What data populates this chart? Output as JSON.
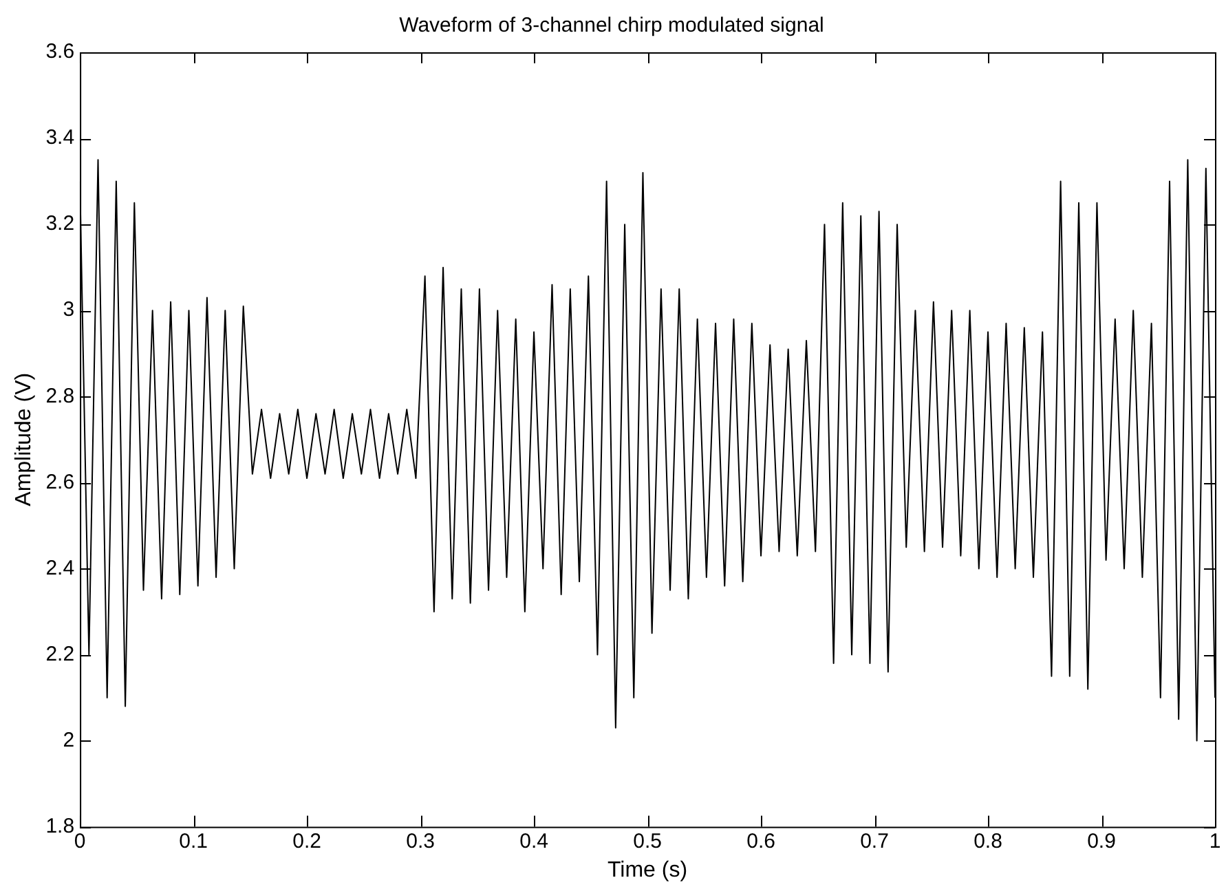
{
  "chart_data": {
    "type": "line",
    "title": "Waveform of 3-channel chirp modulated signal",
    "xlabel": "Time (s)",
    "ylabel": "Amplitude (V)",
    "xlim": [
      0,
      1
    ],
    "xticks": [
      0,
      0.1,
      0.2,
      0.3,
      0.4,
      0.5,
      0.6,
      0.7,
      0.8,
      0.9,
      1
    ],
    "ylim": [
      1.8,
      3.6
    ],
    "yticks": [
      1.8,
      2,
      2.2,
      2.4,
      2.6,
      2.8,
      3,
      3.2,
      3.4,
      3.6
    ],
    "grid": false,
    "legend": false,
    "marker": "none",
    "line_style": "solid",
    "series": [
      {
        "color": "#000000",
        "x": [
          0,
          0.008,
          0.016,
          0.024,
          0.032,
          0.04,
          0.048,
          0.056,
          0.064,
          0.072,
          0.08,
          0.088,
          0.096,
          0.104,
          0.112,
          0.12,
          0.128,
          0.136,
          0.144,
          0.152,
          0.16,
          0.168,
          0.176,
          0.184,
          0.192,
          0.2,
          0.208,
          0.216,
          0.224,
          0.232,
          0.24,
          0.248,
          0.256,
          0.264,
          0.272,
          0.28,
          0.288,
          0.296,
          0.304,
          0.312,
          0.32,
          0.328,
          0.336,
          0.344,
          0.352,
          0.36,
          0.368,
          0.376,
          0.384,
          0.392,
          0.4,
          0.408,
          0.416,
          0.424,
          0.432,
          0.44,
          0.448,
          0.456,
          0.464,
          0.472,
          0.48,
          0.488,
          0.496,
          0.504,
          0.512,
          0.52,
          0.528,
          0.536,
          0.544,
          0.552,
          0.56,
          0.568,
          0.576,
          0.584,
          0.592,
          0.6,
          0.608,
          0.616,
          0.624,
          0.632,
          0.64,
          0.648,
          0.656,
          0.664,
          0.672,
          0.68,
          0.688,
          0.696,
          0.704,
          0.712,
          0.72,
          0.728,
          0.736,
          0.744,
          0.752,
          0.76,
          0.768,
          0.776,
          0.784,
          0.792,
          0.8,
          0.808,
          0.816,
          0.824,
          0.832,
          0.84,
          0.848,
          0.856,
          0.864,
          0.872,
          0.88,
          0.888,
          0.896,
          0.904,
          0.912,
          0.92,
          0.928,
          0.936,
          0.944,
          0.952,
          0.96,
          0.968,
          0.976,
          0.984,
          0.992,
          1
        ],
        "values": [
          3.3,
          2.2,
          3.35,
          2.1,
          3.3,
          2.08,
          3.25,
          2.35,
          3.0,
          2.33,
          3.02,
          2.34,
          3.0,
          2.36,
          3.03,
          2.38,
          3.0,
          2.4,
          3.01,
          2.62,
          2.77,
          2.61,
          2.76,
          2.62,
          2.77,
          2.61,
          2.76,
          2.62,
          2.77,
          2.61,
          2.76,
          2.62,
          2.77,
          2.61,
          2.76,
          2.62,
          2.77,
          2.61,
          3.08,
          2.3,
          3.1,
          2.33,
          3.05,
          2.32,
          3.05,
          2.35,
          3.0,
          2.38,
          2.98,
          2.3,
          2.95,
          2.4,
          3.06,
          2.34,
          3.05,
          2.37,
          3.08,
          2.2,
          3.3,
          2.03,
          3.2,
          2.1,
          3.32,
          2.25,
          3.05,
          2.35,
          3.05,
          2.33,
          2.98,
          2.38,
          2.97,
          2.36,
          2.98,
          2.37,
          2.97,
          2.43,
          2.92,
          2.44,
          2.91,
          2.43,
          2.93,
          2.44,
          3.2,
          2.18,
          3.25,
          2.2,
          3.22,
          2.18,
          3.23,
          2.16,
          3.2,
          2.45,
          3.0,
          2.44,
          3.02,
          2.45,
          3.0,
          2.43,
          3.0,
          2.4,
          2.95,
          2.38,
          2.97,
          2.4,
          2.96,
          2.38,
          2.95,
          2.15,
          3.3,
          2.15,
          3.25,
          2.12,
          3.25,
          2.42,
          2.98,
          2.4,
          3.0,
          2.38,
          2.97,
          2.1,
          3.3,
          2.05,
          3.35,
          2.0,
          3.33,
          2.1
        ]
      }
    ]
  }
}
